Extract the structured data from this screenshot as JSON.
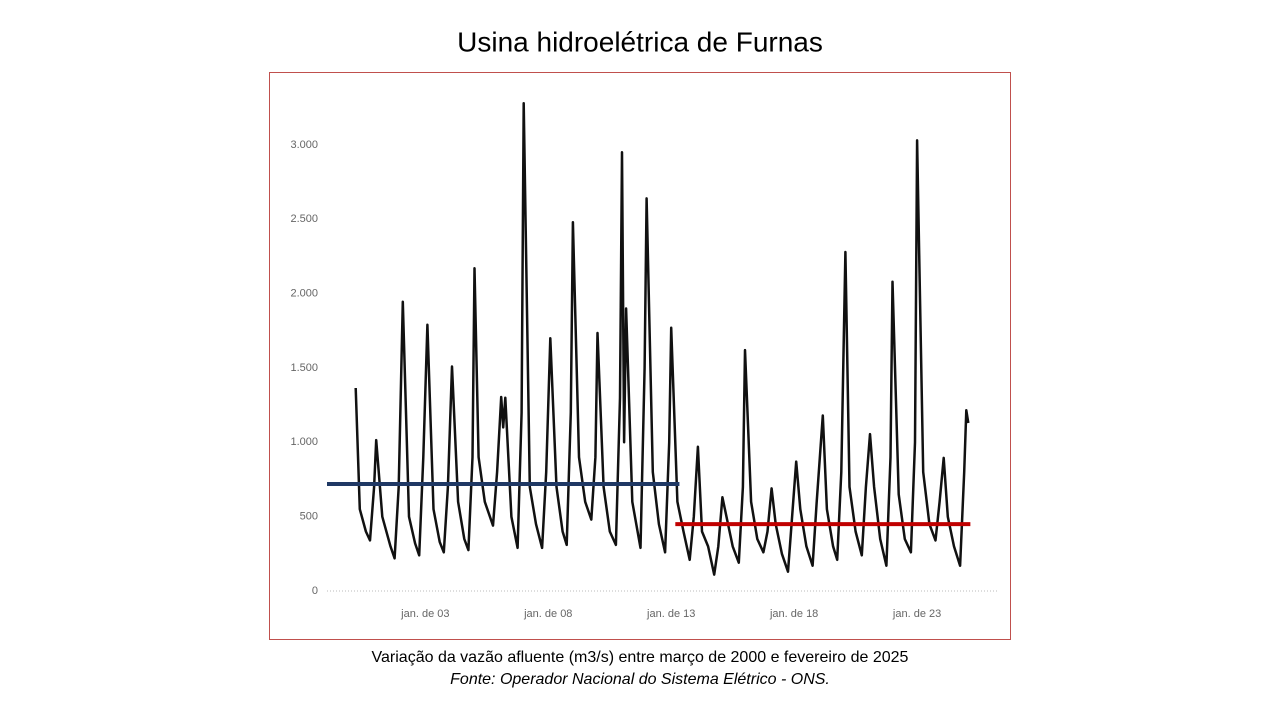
{
  "chart_data": {
    "type": "line",
    "title": "Usina hidroelétrica de Furnas",
    "subtitle": "Variação da vazão afluente (m3/s) entre março de 2000 e fevereiro de 2025",
    "source": "Fonte: Operador Nacional do Sistema Elétrico - ONS.",
    "x": [
      "2000-03",
      "2000-05",
      "2000-08",
      "2000-10",
      "2000-12",
      "2001-01",
      "2001-04",
      "2001-08",
      "2001-10",
      "2001-12",
      "2002-02",
      "2002-05",
      "2002-08",
      "2002-10",
      "2002-12",
      "2003-02",
      "2003-05",
      "2003-08",
      "2003-10",
      "2003-12",
      "2004-02",
      "2004-05",
      "2004-08",
      "2004-10",
      "2004-12",
      "2005-01",
      "2005-03",
      "2005-06",
      "2005-10",
      "2005-12",
      "2006-02",
      "2006-03",
      "2006-04",
      "2006-07",
      "2006-10",
      "2006-12",
      "2007-01",
      "2007-04",
      "2007-07",
      "2007-10",
      "2007-12",
      "2008-02",
      "2008-05",
      "2008-08",
      "2008-10",
      "2008-12",
      "2009-01",
      "2009-04",
      "2009-07",
      "2009-10",
      "2009-12",
      "2010-01",
      "2010-04",
      "2010-07",
      "2010-10",
      "2010-12",
      "2011-01",
      "2011-02",
      "2011-03",
      "2011-06",
      "2011-10",
      "2011-12",
      "2012-01",
      "2012-04",
      "2012-07",
      "2012-10",
      "2012-12",
      "2013-01",
      "2013-04",
      "2013-07",
      "2013-10",
      "2013-12",
      "2014-02",
      "2014-04",
      "2014-07",
      "2014-10",
      "2014-12",
      "2015-02",
      "2015-04",
      "2015-07",
      "2015-10",
      "2015-12",
      "2016-01",
      "2016-04",
      "2016-07",
      "2016-10",
      "2016-12",
      "2017-02",
      "2017-04",
      "2017-07",
      "2017-10",
      "2017-12",
      "2018-02",
      "2018-04",
      "2018-07",
      "2018-10",
      "2018-12",
      "2019-03",
      "2019-05",
      "2019-08",
      "2019-10",
      "2019-12",
      "2020-02",
      "2020-04",
      "2020-07",
      "2020-10",
      "2020-12",
      "2021-02",
      "2021-04",
      "2021-07",
      "2021-10",
      "2021-12",
      "2022-01",
      "2022-04",
      "2022-07",
      "2022-10",
      "2022-12",
      "2023-01",
      "2023-04",
      "2023-07",
      "2023-10",
      "2023-12",
      "2024-02",
      "2024-04",
      "2024-07",
      "2024-10",
      "2024-12",
      "2025-01",
      "2025-02"
    ],
    "values": [
      1365,
      550,
      400,
      340,
      700,
      1015,
      500,
      300,
      220,
      700,
      1945,
      500,
      320,
      240,
      900,
      1790,
      550,
      330,
      260,
      700,
      1510,
      600,
      350,
      275,
      900,
      2170,
      900,
      600,
      440,
      800,
      1305,
      1100,
      1300,
      500,
      290,
      1200,
      3280,
      700,
      450,
      290,
      800,
      1700,
      700,
      400,
      310,
      1200,
      2480,
      900,
      600,
      480,
      900,
      1735,
      700,
      400,
      310,
      1300,
      2950,
      1000,
      1900,
      600,
      290,
      1500,
      2640,
      800,
      450,
      260,
      1000,
      1770,
      600,
      400,
      210,
      500,
      970,
      400,
      300,
      110,
      300,
      630,
      500,
      300,
      190,
      700,
      1620,
      600,
      350,
      260,
      400,
      690,
      450,
      250,
      130,
      500,
      870,
      550,
      300,
      170,
      600,
      1180,
      550,
      300,
      210,
      800,
      2280,
      700,
      400,
      240,
      700,
      1055,
      700,
      350,
      170,
      900,
      2080,
      650,
      350,
      260,
      1000,
      3030,
      800,
      450,
      340,
      600,
      895,
      500,
      300,
      170,
      800,
      1215,
      1130
    ],
    "color": "#111111",
    "reference_lines": [
      {
        "value": 720,
        "x": [
          "1999-01",
          "2013-05"
        ],
        "color": "#1f3864"
      },
      {
        "value": 450,
        "x": [
          "2013-03",
          "2025-03"
        ],
        "color": "#c00000"
      }
    ],
    "xlim": [
      "1999-01",
      "2026-04"
    ],
    "xticks": [
      {
        "value": "2003-01",
        "label": "jan. de 03"
      },
      {
        "value": "2008-01",
        "label": "jan. de 08"
      },
      {
        "value": "2013-01",
        "label": "jan. de 13"
      },
      {
        "value": "2018-01",
        "label": "jan. de 18"
      },
      {
        "value": "2023-01",
        "label": "jan. de 23"
      }
    ],
    "ylim": [
      0,
      3300
    ],
    "yticks": [
      0,
      {
        "value": 500,
        "label": "500"
      },
      {
        "value": 1000,
        "label": "1.000"
      },
      {
        "value": 1500,
        "label": "1.500"
      },
      {
        "value": 2000,
        "label": "2.000"
      },
      {
        "value": 2500,
        "label": "2.500"
      },
      {
        "value": 3000,
        "label": "3.000"
      }
    ],
    "grid": false
  }
}
